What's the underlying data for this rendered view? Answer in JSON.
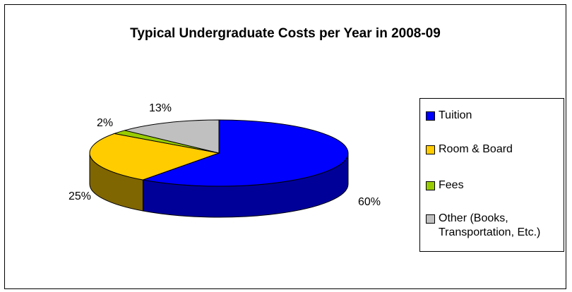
{
  "chart_data": {
    "type": "pie",
    "title": "Typical Undergraduate Costs per Year in 2008-09",
    "slices": [
      {
        "label": "Tuition",
        "value": 60,
        "label_text": "60%",
        "color": "#0000ff",
        "side_color": "#000099"
      },
      {
        "label": "Room & Board",
        "value": 25,
        "label_text": "25%",
        "color": "#ffcc00",
        "side_color": "#806600"
      },
      {
        "label": "Fees",
        "value": 2,
        "label_text": "2%",
        "color": "#99cc00",
        "side_color": "#4d6600"
      },
      {
        "label": "Other (Books, Transportation, Etc.)",
        "value": 13,
        "label_text": "13%",
        "color": "#c0c0c0",
        "side_color": "#606060"
      }
    ],
    "legend_position": "right",
    "style": "3d"
  }
}
